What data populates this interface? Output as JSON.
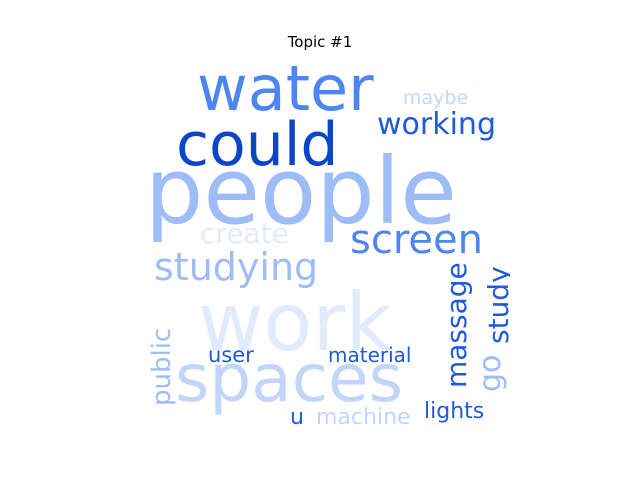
{
  "title": "Topic #1",
  "palette": {
    "darkest": "#0b45c8",
    "dark": "#1f5ad8",
    "medium": "#4d86f0",
    "light": "#9dbcf8",
    "lighter": "#c2d6fb",
    "lightest": "#e2ebfd"
  },
  "words": [
    {
      "id": "word-work",
      "text": "work"
    },
    {
      "id": "word-people",
      "text": "people"
    },
    {
      "id": "word-spaces",
      "text": "spaces"
    },
    {
      "id": "word-water",
      "text": "water"
    },
    {
      "id": "word-could",
      "text": "could"
    },
    {
      "id": "word-working",
      "text": "working"
    },
    {
      "id": "word-maybe",
      "text": "maybe"
    },
    {
      "id": "word-screen",
      "text": "screen"
    },
    {
      "id": "word-create",
      "text": "create"
    },
    {
      "id": "word-studying",
      "text": "studying"
    },
    {
      "id": "word-massage",
      "text": "massage"
    },
    {
      "id": "word-study",
      "text": "study"
    },
    {
      "id": "word-go",
      "text": "go"
    },
    {
      "id": "word-public",
      "text": "public"
    },
    {
      "id": "word-user",
      "text": "user"
    },
    {
      "id": "word-material",
      "text": "material"
    },
    {
      "id": "word-u",
      "text": "u"
    },
    {
      "id": "word-machine",
      "text": "machine"
    },
    {
      "id": "word-lights",
      "text": "lights"
    }
  ]
}
